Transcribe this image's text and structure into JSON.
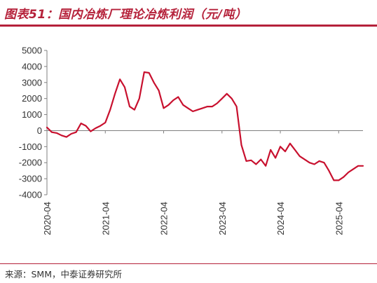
{
  "title": "图表51：国内冶炼厂理论冶炼利润（元/吨）",
  "source": "来源：SMM，中泰证券研究所",
  "colors": {
    "accent": "#b5213a",
    "line": "#c8102e",
    "axis": "#7f7f7f"
  },
  "chart_data": {
    "type": "line",
    "title": "图表51：国内冶炼厂理论冶炼利润（元/吨）",
    "xlabel": "",
    "ylabel": "",
    "ylim": [
      -4000,
      5000
    ],
    "yticks": [
      5000,
      4000,
      3000,
      2000,
      1000,
      0,
      -1000,
      -2000,
      -3000,
      -4000
    ],
    "xlim": [
      "2020-04",
      "2025-09"
    ],
    "xticks": [
      "2020-04",
      "2021-04",
      "2022-04",
      "2023-04",
      "2024-04",
      "2025-04"
    ],
    "grid": false,
    "legend": "none",
    "series": [
      {
        "x": [
          "2020-04",
          "2020-05",
          "2020-06",
          "2020-07",
          "2020-08",
          "2020-09",
          "2020-10",
          "2020-11",
          "2020-12",
          "2021-01",
          "2021-02",
          "2021-03",
          "2021-04",
          "2021-05",
          "2021-06",
          "2021-07",
          "2021-08",
          "2021-09",
          "2021-10",
          "2021-11",
          "2021-12",
          "2022-01",
          "2022-02",
          "2022-03",
          "2022-04",
          "2022-05",
          "2022-06",
          "2022-07",
          "2022-08",
          "2022-09",
          "2022-10",
          "2022-11",
          "2022-12",
          "2023-01",
          "2023-02",
          "2023-03",
          "2023-04",
          "2023-05",
          "2023-06",
          "2023-07",
          "2023-08",
          "2023-09",
          "2023-10",
          "2023-11",
          "2023-12",
          "2024-01",
          "2024-02",
          "2024-03",
          "2024-04",
          "2024-05",
          "2024-06",
          "2024-07",
          "2024-08",
          "2024-09",
          "2024-10",
          "2024-11",
          "2024-12",
          "2025-01",
          "2025-02",
          "2025-03",
          "2025-04",
          "2025-05",
          "2025-06",
          "2025-07",
          "2025-08",
          "2025-09"
        ],
        "values": [
          200,
          -100,
          -150,
          -300,
          -400,
          -200,
          -100,
          450,
          300,
          -50,
          150,
          300,
          500,
          1300,
          2300,
          3200,
          2700,
          1500,
          1300,
          2000,
          3650,
          3600,
          3000,
          2500,
          1400,
          1600,
          1900,
          2100,
          1600,
          1400,
          1200,
          1300,
          1400,
          1500,
          1500,
          1700,
          2000,
          2300,
          2000,
          1500,
          -900,
          -1900,
          -1850,
          -2100,
          -1800,
          -2200,
          -1200,
          -1700,
          -1000,
          -1300,
          -800,
          -1200,
          -1600,
          -1800,
          -2000,
          -2100,
          -1900,
          -2000,
          -2500,
          -3100,
          -3100,
          -2900,
          -2600,
          -2400,
          -2200,
          -2200
        ]
      }
    ]
  }
}
